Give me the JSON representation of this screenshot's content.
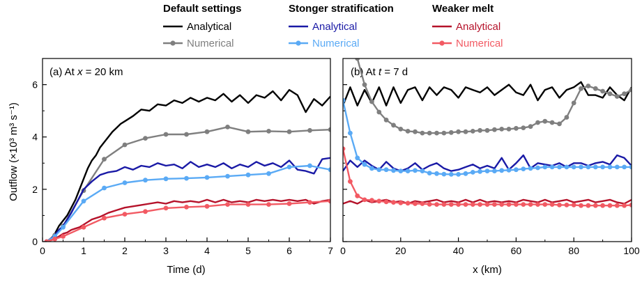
{
  "legend": {
    "groups": [
      {
        "header": "Default settings",
        "analytical": "Analytical",
        "numerical": "Numerical",
        "color_analytical": "#000000",
        "color_numerical": "#7f7f7f"
      },
      {
        "header": "Stonger stratification",
        "analytical": "Analytical",
        "numerical": "Numerical",
        "color_analytical": "#1a1aa6",
        "color_numerical": "#5aaaf5"
      },
      {
        "header": "Weaker melt",
        "analytical": "Analytical",
        "numerical": "Numerical",
        "color_analytical": "#b5122a",
        "color_numerical": "#f25a63"
      }
    ]
  },
  "chart_data": [
    {
      "type": "line",
      "panel_label_pre": "(a) At ",
      "panel_label_var": "x",
      "panel_label_post": " = 20 km",
      "xlabel": "Time (d)",
      "ylabel": "Outflow (×10³ m³ s⁻¹)",
      "xlim": [
        0,
        7
      ],
      "ylim": [
        0,
        7
      ],
      "xticks": [
        0,
        1,
        2,
        3,
        4,
        5,
        6,
        7
      ],
      "yticks": [
        0,
        2,
        4,
        6
      ],
      "grid": false,
      "series": [
        {
          "name": "Default settings – Analytical",
          "color": "#000000",
          "marker": false,
          "x": [
            0.1,
            0.2,
            0.3,
            0.4,
            0.5,
            0.6,
            0.7,
            0.8,
            0.9,
            1.0,
            1.1,
            1.2,
            1.3,
            1.4,
            1.5,
            1.6,
            1.7,
            1.8,
            1.9,
            2.0,
            2.2,
            2.4,
            2.6,
            2.8,
            3.0,
            3.2,
            3.4,
            3.6,
            3.8,
            4.0,
            4.2,
            4.4,
            4.6,
            4.8,
            5.0,
            5.2,
            5.4,
            5.6,
            5.8,
            6.0,
            6.2,
            6.4,
            6.6,
            6.8,
            7.0
          ],
          "y": [
            0.0,
            0.1,
            0.3,
            0.6,
            0.8,
            1.0,
            1.3,
            1.6,
            2.0,
            2.4,
            2.8,
            3.1,
            3.3,
            3.6,
            3.8,
            4.0,
            4.2,
            4.35,
            4.5,
            4.6,
            4.8,
            5.05,
            5.0,
            5.25,
            5.2,
            5.4,
            5.3,
            5.5,
            5.35,
            5.5,
            5.4,
            5.65,
            5.35,
            5.6,
            5.3,
            5.6,
            5.5,
            5.75,
            5.4,
            5.8,
            5.6,
            4.95,
            5.45,
            5.2,
            5.55
          ]
        },
        {
          "name": "Default settings – Numerical",
          "color": "#7f7f7f",
          "marker": true,
          "x": [
            0.1,
            0.3,
            0.5,
            1.0,
            1.5,
            2.0,
            2.5,
            3.0,
            3.5,
            4.0,
            4.5,
            5.0,
            5.5,
            6.0,
            6.5,
            7.0
          ],
          "y": [
            0.0,
            0.25,
            0.6,
            1.95,
            3.15,
            3.7,
            3.95,
            4.1,
            4.1,
            4.2,
            4.38,
            4.2,
            4.22,
            4.2,
            4.25,
            4.28
          ]
        },
        {
          "name": "Stonger stratification – Analytical",
          "color": "#1a1aa6",
          "marker": false,
          "x": [
            0.1,
            0.2,
            0.3,
            0.4,
            0.5,
            0.6,
            0.7,
            0.8,
            0.9,
            1.0,
            1.2,
            1.4,
            1.6,
            1.8,
            2.0,
            2.2,
            2.4,
            2.6,
            2.8,
            3.0,
            3.2,
            3.4,
            3.6,
            3.8,
            4.0,
            4.2,
            4.4,
            4.6,
            4.8,
            5.0,
            5.2,
            5.4,
            5.6,
            5.8,
            6.0,
            6.2,
            6.4,
            6.6,
            6.8,
            7.0
          ],
          "y": [
            0.0,
            0.1,
            0.25,
            0.45,
            0.6,
            0.85,
            1.1,
            1.4,
            1.7,
            2.0,
            2.3,
            2.55,
            2.65,
            2.7,
            2.85,
            2.75,
            2.9,
            2.85,
            3.0,
            2.9,
            2.95,
            2.8,
            3.05,
            2.85,
            2.95,
            2.85,
            3.0,
            2.8,
            2.95,
            2.85,
            3.05,
            2.9,
            3.0,
            2.85,
            3.1,
            2.75,
            2.7,
            2.6,
            3.15,
            3.2
          ]
        },
        {
          "name": "Stonger stratification – Numerical",
          "color": "#5aaaf5",
          "marker": true,
          "x": [
            0.1,
            0.3,
            0.5,
            1.0,
            1.5,
            2.0,
            2.5,
            3.0,
            3.5,
            4.0,
            4.5,
            5.0,
            5.5,
            6.0,
            6.5,
            7.0
          ],
          "y": [
            0.0,
            0.2,
            0.55,
            1.55,
            2.05,
            2.25,
            2.35,
            2.4,
            2.42,
            2.45,
            2.5,
            2.55,
            2.6,
            2.85,
            2.9,
            2.75
          ]
        },
        {
          "name": "Weaker melt – Analytical",
          "color": "#b5122a",
          "marker": false,
          "x": [
            0.1,
            0.2,
            0.3,
            0.4,
            0.5,
            0.6,
            0.7,
            0.8,
            0.9,
            1.0,
            1.2,
            1.4,
            1.6,
            1.8,
            2.0,
            2.2,
            2.4,
            2.6,
            2.8,
            3.0,
            3.2,
            3.4,
            3.6,
            3.8,
            4.0,
            4.2,
            4.4,
            4.6,
            4.8,
            5.0,
            5.2,
            5.4,
            5.6,
            5.8,
            6.0,
            6.2,
            6.4,
            6.6,
            6.8,
            7.0
          ],
          "y": [
            0.0,
            0.05,
            0.1,
            0.2,
            0.3,
            0.35,
            0.45,
            0.5,
            0.55,
            0.65,
            0.85,
            0.95,
            1.1,
            1.2,
            1.3,
            1.35,
            1.4,
            1.45,
            1.5,
            1.45,
            1.55,
            1.5,
            1.55,
            1.5,
            1.6,
            1.5,
            1.6,
            1.5,
            1.55,
            1.5,
            1.6,
            1.55,
            1.6,
            1.55,
            1.6,
            1.55,
            1.6,
            1.45,
            1.55,
            1.6
          ]
        },
        {
          "name": "Weaker melt – Numerical",
          "color": "#f25a63",
          "marker": true,
          "x": [
            0.1,
            0.3,
            0.5,
            1.0,
            1.5,
            2.0,
            2.5,
            3.0,
            3.5,
            4.0,
            4.5,
            5.0,
            5.5,
            6.0,
            6.5,
            7.0
          ],
          "y": [
            0.0,
            0.1,
            0.2,
            0.55,
            0.9,
            1.05,
            1.15,
            1.28,
            1.32,
            1.35,
            1.42,
            1.42,
            1.42,
            1.45,
            1.5,
            1.55
          ]
        }
      ]
    },
    {
      "type": "line",
      "panel_label_pre": "(b) At ",
      "panel_label_var": "t",
      "panel_label_post": " = 7 d",
      "xlabel": "x (km)",
      "ylabel": "",
      "xlim": [
        0,
        100
      ],
      "ylim": [
        0,
        7
      ],
      "xticks": [
        0,
        20,
        40,
        60,
        80,
        100
      ],
      "yticks": [
        0,
        2,
        4,
        6
      ],
      "grid": false,
      "series": [
        {
          "name": "Default settings – Analytical",
          "color": "#000000",
          "marker": false,
          "x": [
            0,
            2.5,
            5,
            7.5,
            10,
            12.5,
            15,
            17.5,
            20,
            22.5,
            25,
            27.5,
            30,
            32.5,
            35,
            37.5,
            40,
            42.5,
            45,
            47.5,
            50,
            52.5,
            55,
            57.5,
            60,
            62.5,
            65,
            67.5,
            70,
            72.5,
            75,
            77.5,
            80,
            82.5,
            85,
            87.5,
            90,
            92.5,
            95,
            97.5,
            100
          ],
          "y": [
            5.2,
            5.9,
            5.2,
            5.8,
            5.3,
            5.9,
            5.2,
            5.9,
            5.3,
            5.8,
            5.9,
            5.4,
            5.9,
            5.6,
            5.9,
            5.8,
            5.5,
            5.9,
            5.8,
            5.7,
            5.9,
            5.6,
            5.8,
            6.0,
            5.7,
            5.6,
            6.0,
            5.4,
            5.8,
            5.9,
            5.5,
            5.8,
            5.9,
            6.1,
            5.6,
            5.6,
            5.5,
            5.9,
            5.6,
            5.4,
            5.9
          ]
        },
        {
          "name": "Default settings – Numerical",
          "color": "#7f7f7f",
          "marker": true,
          "x": [
            5,
            7.5,
            10,
            12.5,
            15,
            17.5,
            20,
            22.5,
            25,
            27.5,
            30,
            32.5,
            35,
            37.5,
            40,
            42.5,
            45,
            47.5,
            50,
            52.5,
            55,
            57.5,
            60,
            62.5,
            65,
            67.5,
            70,
            72.5,
            75,
            77.5,
            80,
            82.5,
            85,
            87.5,
            90,
            92.5,
            95,
            97.5,
            100
          ],
          "y": [
            7.0,
            6.0,
            5.35,
            4.95,
            4.65,
            4.45,
            4.3,
            4.22,
            4.2,
            4.15,
            4.15,
            4.15,
            4.15,
            4.17,
            4.2,
            4.2,
            4.22,
            4.25,
            4.25,
            4.28,
            4.3,
            4.3,
            4.33,
            4.35,
            4.4,
            4.55,
            4.6,
            4.55,
            4.5,
            4.75,
            5.3,
            5.85,
            5.95,
            5.85,
            5.75,
            5.65,
            5.55,
            5.65,
            5.8
          ]
        },
        {
          "name": "Stonger stratification – Analytical",
          "color": "#1a1aa6",
          "marker": false,
          "x": [
            0,
            2.5,
            5,
            7.5,
            10,
            12.5,
            15,
            17.5,
            20,
            22.5,
            25,
            27.5,
            30,
            32.5,
            35,
            37.5,
            40,
            42.5,
            45,
            47.5,
            50,
            52.5,
            55,
            57.5,
            60,
            62.5,
            65,
            67.5,
            70,
            72.5,
            75,
            77.5,
            80,
            82.5,
            85,
            87.5,
            90,
            92.5,
            95,
            97.5,
            100
          ],
          "y": [
            2.7,
            3.1,
            2.85,
            3.1,
            2.9,
            2.75,
            3.05,
            2.8,
            2.7,
            2.8,
            3.0,
            2.75,
            2.9,
            3.0,
            2.8,
            2.7,
            2.75,
            2.85,
            2.95,
            2.8,
            2.9,
            2.8,
            3.2,
            2.75,
            3.0,
            3.3,
            2.8,
            3.0,
            2.95,
            2.9,
            3.0,
            2.85,
            3.0,
            3.0,
            2.9,
            3.0,
            3.05,
            2.95,
            3.3,
            3.2,
            2.9
          ]
        },
        {
          "name": "Stonger stratification – Numerical",
          "color": "#5aaaf5",
          "marker": true,
          "x": [
            0,
            2.5,
            5,
            7.5,
            10,
            12.5,
            15,
            17.5,
            20,
            22.5,
            25,
            27.5,
            30,
            32.5,
            35,
            37.5,
            40,
            42.5,
            45,
            47.5,
            50,
            52.5,
            55,
            57.5,
            60,
            62.5,
            65,
            67.5,
            70,
            72.5,
            75,
            77.5,
            80,
            82.5,
            85,
            87.5,
            90,
            92.5,
            95,
            97.5,
            100
          ],
          "y": [
            5.4,
            4.15,
            3.2,
            2.95,
            2.8,
            2.75,
            2.75,
            2.72,
            2.7,
            2.7,
            2.72,
            2.7,
            2.62,
            2.6,
            2.58,
            2.57,
            2.57,
            2.6,
            2.65,
            2.68,
            2.7,
            2.7,
            2.72,
            2.73,
            2.75,
            2.78,
            2.8,
            2.82,
            2.85,
            2.85,
            2.85,
            2.85,
            2.85,
            2.85,
            2.85,
            2.85,
            2.85,
            2.85,
            2.85,
            2.85,
            2.85
          ]
        },
        {
          "name": "Weaker melt – Analytical",
          "color": "#b5122a",
          "marker": false,
          "x": [
            0,
            2.5,
            5,
            7.5,
            10,
            12.5,
            15,
            17.5,
            20,
            22.5,
            25,
            27.5,
            30,
            32.5,
            35,
            37.5,
            40,
            42.5,
            45,
            47.5,
            50,
            52.5,
            55,
            57.5,
            60,
            62.5,
            65,
            67.5,
            70,
            72.5,
            75,
            77.5,
            80,
            82.5,
            85,
            87.5,
            90,
            92.5,
            95,
            97.5,
            100
          ],
          "y": [
            1.45,
            1.55,
            1.45,
            1.6,
            1.5,
            1.55,
            1.6,
            1.5,
            1.55,
            1.45,
            1.55,
            1.5,
            1.55,
            1.6,
            1.5,
            1.55,
            1.5,
            1.6,
            1.5,
            1.6,
            1.5,
            1.55,
            1.5,
            1.55,
            1.5,
            1.6,
            1.55,
            1.5,
            1.6,
            1.5,
            1.55,
            1.6,
            1.5,
            1.55,
            1.6,
            1.5,
            1.55,
            1.6,
            1.5,
            1.45,
            1.6
          ]
        },
        {
          "name": "Weaker melt – Numerical",
          "color": "#f25a63",
          "marker": true,
          "x": [
            0,
            2.5,
            5,
            7.5,
            10,
            12.5,
            15,
            17.5,
            20,
            22.5,
            25,
            27.5,
            30,
            32.5,
            35,
            37.5,
            40,
            42.5,
            45,
            47.5,
            50,
            52.5,
            55,
            57.5,
            60,
            62.5,
            65,
            67.5,
            70,
            72.5,
            75,
            77.5,
            80,
            82.5,
            85,
            87.5,
            90,
            92.5,
            95,
            97.5,
            100
          ],
          "y": [
            3.55,
            2.3,
            1.75,
            1.6,
            1.58,
            1.55,
            1.52,
            1.5,
            1.48,
            1.47,
            1.45,
            1.45,
            1.43,
            1.42,
            1.42,
            1.42,
            1.42,
            1.42,
            1.42,
            1.42,
            1.42,
            1.42,
            1.42,
            1.42,
            1.42,
            1.42,
            1.42,
            1.42,
            1.42,
            1.42,
            1.4,
            1.4,
            1.4,
            1.38,
            1.38,
            1.38,
            1.38,
            1.38,
            1.38,
            1.38,
            1.4
          ]
        }
      ]
    }
  ]
}
